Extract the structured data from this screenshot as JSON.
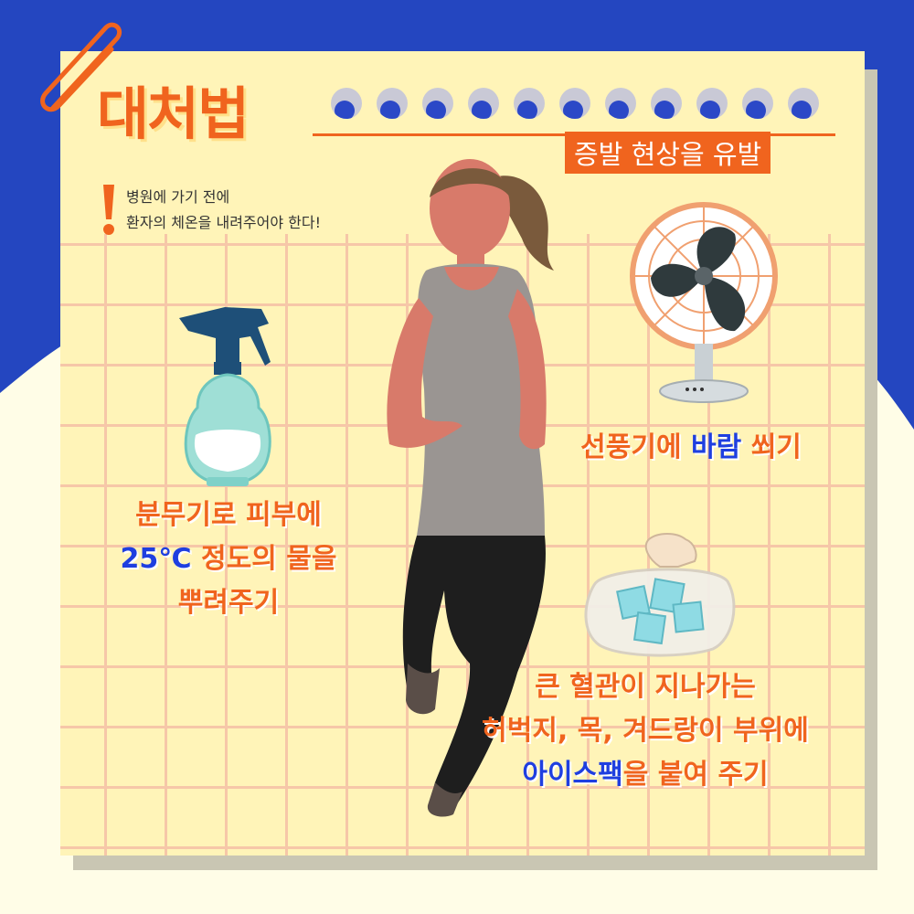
{
  "title": "대처법",
  "subtitle": "증발 현상을 유발",
  "warning": {
    "line1": "병원에 가기 전에",
    "line2": "환자의 체온을 내려주어야 한다!"
  },
  "sections": {
    "spray": {
      "line1": "분무기로 피부에",
      "line2_highlight": "25℃",
      "line2_rest": " 정도의 물을",
      "line3": "뿌려주기"
    },
    "fan": {
      "pre": "선풍기에 ",
      "highlight": "바람",
      "post": " 쐬기"
    },
    "ice": {
      "line1": "큰 혈관이 지나가는",
      "line2": "허벅지, 목, 겨드랑이 부위에",
      "line3_highlight": "아이스팩",
      "line3_rest": "을 붙여 주기"
    }
  },
  "colors": {
    "accent": "#f0641e",
    "highlight": "#1f3fe0",
    "background_blue": "#2446c0",
    "card": "#fff4b8"
  }
}
